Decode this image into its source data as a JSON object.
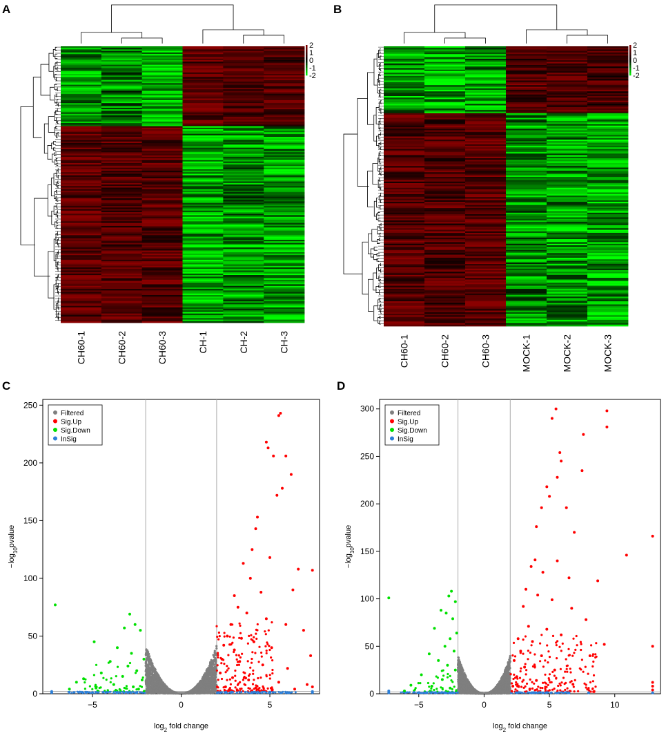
{
  "panels": {
    "A": {
      "letter": "A",
      "columns": [
        "CH60-1",
        "CH60-2",
        "CH60-3",
        "CH-1",
        "CH-2",
        "CH-3"
      ],
      "scale_ticks": [
        "2",
        "1",
        "0",
        "-1",
        "-2"
      ]
    },
    "B": {
      "letter": "B",
      "columns": [
        "CH60-1",
        "CH60-2",
        "CH60-3",
        "MOCK-1",
        "MOCK-2",
        "MOCK-3"
      ],
      "scale_ticks": [
        "2",
        "1",
        "0",
        "-1",
        "-2"
      ]
    },
    "C": {
      "letter": "C"
    },
    "D": {
      "letter": "D"
    }
  },
  "colors": {
    "high": "#8b0000",
    "mid": "#000000",
    "low": "#00ff00",
    "filtered": "#7f7f7f",
    "sig_up": "#ff0000",
    "sig_down": "#00e000",
    "insig": "#2c7fd8"
  },
  "chart_data": [
    {
      "panel": "A",
      "type": "heatmap",
      "columns": [
        "CH60-1",
        "CH60-2",
        "CH60-3",
        "CH-1",
        "CH-2",
        "CH-3"
      ],
      "color_scale": {
        "min": -2,
        "max": 2,
        "ticks": [
          "2",
          "1",
          "0",
          "-1",
          "-2"
        ]
      },
      "clusters": [
        {
          "row_fraction": 0.29,
          "values": [
            -1.2,
            -1.0,
            -1.4,
            1.3,
            1.2,
            1.1
          ]
        },
        {
          "row_fraction": 0.71,
          "values": [
            1.3,
            1.2,
            1.2,
            -1.3,
            -1.1,
            -1.2
          ]
        }
      ]
    },
    {
      "panel": "B",
      "type": "heatmap",
      "columns": [
        "CH60-1",
        "CH60-2",
        "CH60-3",
        "MOCK-1",
        "MOCK-2",
        "MOCK-3"
      ],
      "color_scale": {
        "min": -2,
        "max": 2,
        "ticks": [
          "2",
          "1",
          "0",
          "-1",
          "-2"
        ]
      },
      "clusters": [
        {
          "row_fraction": 0.24,
          "values": [
            -1.2,
            -1.3,
            -1.2,
            1.1,
            1.1,
            1.0
          ]
        },
        {
          "row_fraction": 0.76,
          "values": [
            1.2,
            1.1,
            1.3,
            -1.1,
            -1.2,
            -1.3
          ]
        }
      ]
    },
    {
      "panel": "C",
      "type": "scatter",
      "xlabel": "log2 fold change",
      "ylabel": "−log10pvalue",
      "xlabel_base": "log",
      "xlabel_sub": "2",
      "xlabel_rest": " fold change",
      "ylabel_base": "−log",
      "ylabel_sub": "10",
      "ylabel_rest": "pvalue",
      "xlim": [
        -7.8,
        7.8
      ],
      "ylim": [
        0,
        255
      ],
      "xticks": [
        -5,
        0,
        5
      ],
      "yticks": [
        0,
        50,
        100,
        150,
        200,
        250
      ],
      "vlines": [
        -2,
        2
      ],
      "hline": 2,
      "legend": [
        "Filtered",
        "Sig.Up",
        "Sig.Down",
        "InSig"
      ],
      "filtered_band": {
        "xmin": -2,
        "xmax": 2,
        "ymax_at_edge": 42
      },
      "series": [
        {
          "name": "Sig.Up",
          "points": [
            [
              5.5,
              241
            ],
            [
              5.6,
              243
            ],
            [
              4.8,
              218
            ],
            [
              4.9,
              213
            ],
            [
              5.2,
              206
            ],
            [
              5.9,
              206
            ],
            [
              6.2,
              190
            ],
            [
              5.4,
              172
            ],
            [
              5.7,
              178
            ],
            [
              4.2,
              143
            ],
            [
              4.3,
              153
            ],
            [
              6.6,
              108
            ],
            [
              7.4,
              107
            ],
            [
              4.0,
              125
            ],
            [
              3.5,
              113
            ],
            [
              3.9,
              100
            ],
            [
              5.0,
              118
            ],
            [
              6.3,
              90
            ],
            [
              3.0,
              85
            ],
            [
              3.2,
              75
            ],
            [
              4.5,
              88
            ],
            [
              3.7,
              70
            ],
            [
              2.8,
              60
            ],
            [
              4.8,
              65
            ],
            [
              5.9,
              60
            ],
            [
              6.9,
              55
            ],
            [
              2.6,
              50
            ],
            [
              3.4,
              48
            ],
            [
              4.1,
              45
            ],
            [
              2.4,
              42
            ],
            [
              3.0,
              38
            ],
            [
              5.1,
              40
            ],
            [
              2.3,
              30
            ],
            [
              3.3,
              28
            ],
            [
              4.6,
              25
            ],
            [
              6.0,
              22
            ],
            [
              7.3,
              33
            ],
            [
              2.2,
              18
            ],
            [
              2.9,
              14
            ],
            [
              3.8,
              12
            ],
            [
              5.5,
              10
            ],
            [
              7.1,
              8
            ],
            [
              2.5,
              6
            ],
            [
              4.2,
              5
            ],
            [
              6.4,
              4
            ],
            [
              7.4,
              6
            ]
          ]
        },
        {
          "name": "Sig.Down",
          "points": [
            [
              -7.1,
              77
            ],
            [
              -2.9,
              69
            ],
            [
              -2.6,
              60
            ],
            [
              -3.2,
              57
            ],
            [
              -2.3,
              55
            ],
            [
              -4.9,
              45
            ],
            [
              -3.6,
              40
            ],
            [
              -2.8,
              35
            ],
            [
              -2.1,
              30
            ],
            [
              -4.0,
              28
            ],
            [
              -3.0,
              24
            ],
            [
              -5.5,
              13
            ],
            [
              -4.5,
              18
            ],
            [
              -2.5,
              20
            ],
            [
              -3.3,
              15
            ],
            [
              -2.2,
              12
            ],
            [
              -5.9,
              10
            ],
            [
              -3.8,
              8
            ],
            [
              -2.7,
              6
            ],
            [
              -4.8,
              5
            ],
            [
              -6.3,
              4
            ],
            [
              -2.4,
              4
            ]
          ]
        },
        {
          "name": "InSig",
          "points": [
            [
              -7.3,
              1
            ],
            [
              -7.3,
              2
            ],
            [
              -5.0,
              1
            ],
            [
              -3.0,
              1
            ],
            [
              -2.5,
              1
            ],
            [
              2.5,
              1
            ],
            [
              4.0,
              1
            ],
            [
              6.0,
              1
            ],
            [
              7.4,
              1
            ],
            [
              7.4,
              2
            ]
          ]
        }
      ]
    },
    {
      "panel": "D",
      "type": "scatter",
      "xlabel": "log2 fold change",
      "ylabel": "−log10pvalue",
      "xlabel_base": "log",
      "xlabel_sub": "2",
      "xlabel_rest": " fold change",
      "ylabel_base": "−log",
      "ylabel_sub": "10",
      "ylabel_rest": "pvalue",
      "xlim": [
        -8.0,
        13.5
      ],
      "ylim": [
        0,
        310
      ],
      "xticks": [
        -5,
        0,
        5,
        10
      ],
      "yticks": [
        0,
        50,
        100,
        150,
        200,
        250,
        300
      ],
      "vlines": [
        -2,
        2
      ],
      "hline": 2,
      "legend": [
        "Filtered",
        "Sig.Up",
        "Sig.Down",
        "InSig"
      ],
      "filtered_band": {
        "xmin": -2,
        "xmax": 2,
        "ymax_at_edge": 40
      },
      "series": [
        {
          "name": "Sig.Up",
          "points": [
            [
              5.5,
              300
            ],
            [
              5.2,
              290
            ],
            [
              9.4,
              298
            ],
            [
              9.4,
              281
            ],
            [
              7.6,
              273
            ],
            [
              5.9,
              245
            ],
            [
              7.5,
              235
            ],
            [
              5.6,
              228
            ],
            [
              5.8,
              254
            ],
            [
              4.8,
              218
            ],
            [
              5.0,
              208
            ],
            [
              4.4,
              196
            ],
            [
              6.3,
              196
            ],
            [
              4.0,
              176
            ],
            [
              6.9,
              170
            ],
            [
              12.9,
              166
            ],
            [
              10.9,
              146
            ],
            [
              3.9,
              141
            ],
            [
              5.6,
              140
            ],
            [
              3.6,
              134
            ],
            [
              4.5,
              128
            ],
            [
              6.5,
              122
            ],
            [
              8.7,
              119
            ],
            [
              3.2,
              110
            ],
            [
              4.1,
              104
            ],
            [
              5.2,
              99
            ],
            [
              3.0,
              92
            ],
            [
              6.7,
              90
            ],
            [
              7.8,
              78
            ],
            [
              3.4,
              71
            ],
            [
              4.8,
              68
            ],
            [
              5.9,
              62
            ],
            [
              2.6,
              58
            ],
            [
              3.7,
              55
            ],
            [
              9.2,
              52
            ],
            [
              8.1,
              40
            ],
            [
              12.9,
              50
            ],
            [
              2.8,
              45
            ],
            [
              4.4,
              40
            ],
            [
              2.3,
              35
            ],
            [
              3.1,
              28
            ],
            [
              5.4,
              25
            ],
            [
              2.5,
              18
            ],
            [
              4.0,
              14
            ],
            [
              6.8,
              10
            ],
            [
              2.2,
              8
            ],
            [
              3.5,
              5
            ],
            [
              12.9,
              4
            ],
            [
              12.9,
              8
            ],
            [
              12.9,
              12
            ]
          ]
        },
        {
          "name": "Sig.Down",
          "points": [
            [
              -7.3,
              101
            ],
            [
              -2.5,
              108
            ],
            [
              -2.7,
              103
            ],
            [
              -2.2,
              97
            ],
            [
              -3.3,
              88
            ],
            [
              -2.9,
              85
            ],
            [
              -2.4,
              79
            ],
            [
              -3.8,
              69
            ],
            [
              -2.1,
              64
            ],
            [
              -2.6,
              58
            ],
            [
              -3.0,
              50
            ],
            [
              -2.3,
              45
            ],
            [
              -4.2,
              42
            ],
            [
              -3.5,
              35
            ],
            [
              -2.8,
              30
            ],
            [
              -4.8,
              20
            ],
            [
              -2.2,
              25
            ],
            [
              -3.2,
              15
            ],
            [
              -5.6,
              9
            ],
            [
              -4.0,
              8
            ],
            [
              -2.6,
              6
            ],
            [
              -6.1,
              3
            ]
          ]
        },
        {
          "name": "InSig",
          "points": [
            [
              -7.3,
              1
            ],
            [
              -7.3,
              3
            ],
            [
              -5.0,
              1
            ],
            [
              -3.0,
              1
            ],
            [
              -2.5,
              1
            ],
            [
              2.5,
              1
            ],
            [
              4.5,
              1
            ],
            [
              6.5,
              1
            ],
            [
              8.0,
              1
            ],
            [
              12.9,
              1
            ]
          ]
        }
      ]
    }
  ]
}
